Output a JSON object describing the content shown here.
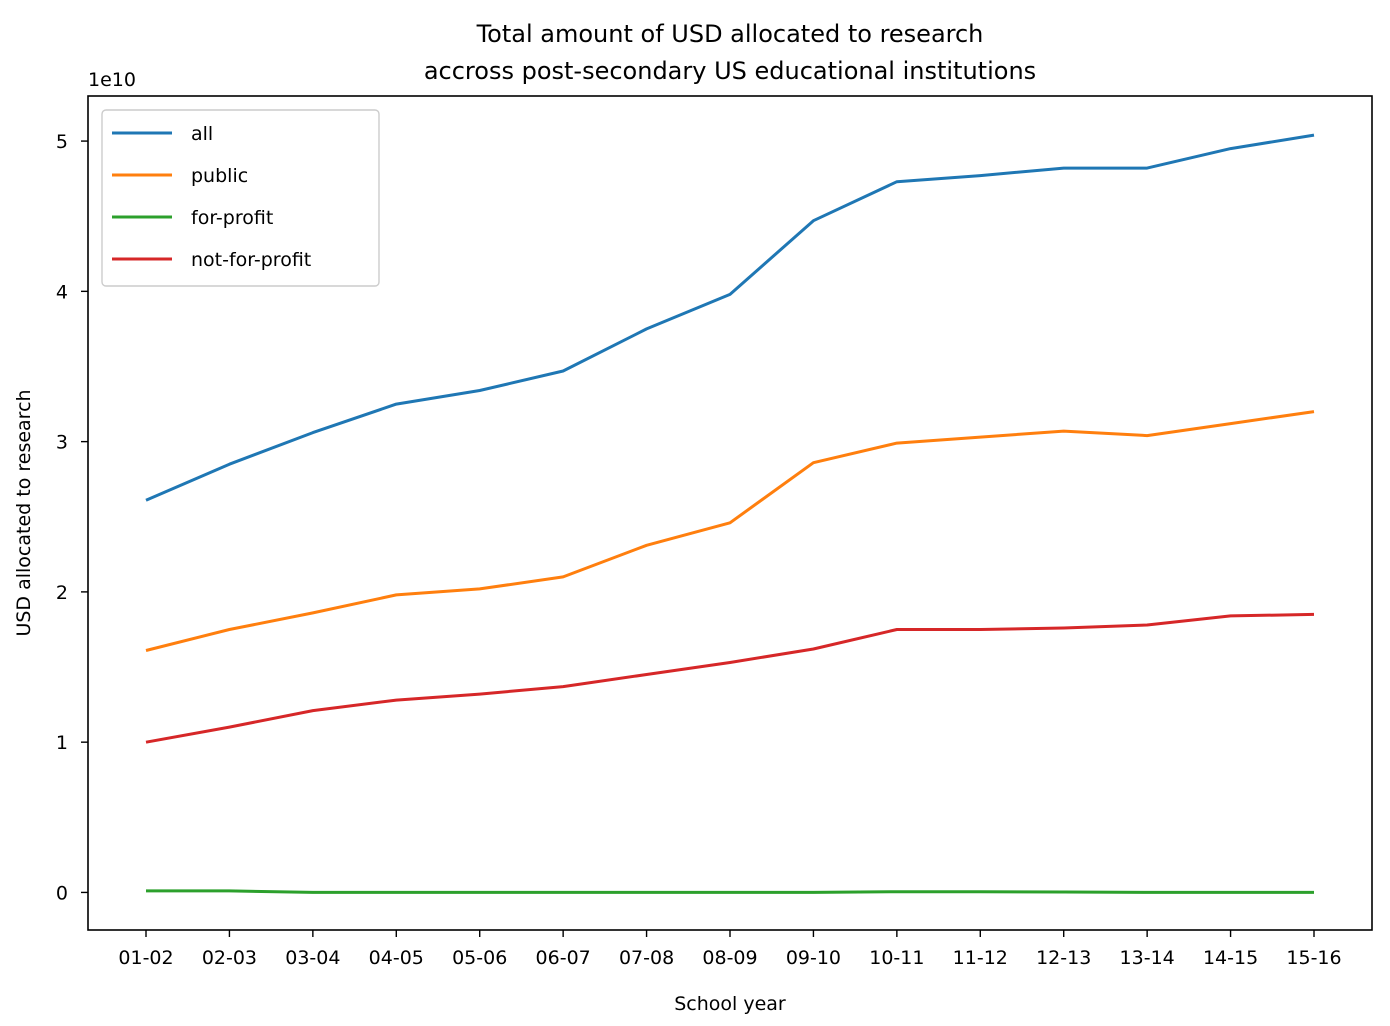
{
  "chart_data": {
    "type": "line",
    "title": [
      "Total amount of USD allocated to research",
      "accross post-secondary US educational institutions"
    ],
    "xlabel": "School year",
    "ylabel": "USD allocated to research",
    "y_offset_label": "1e10",
    "y_scale_factor": 10000000000,
    "categories": [
      "01-02",
      "02-03",
      "03-04",
      "04-05",
      "05-06",
      "06-07",
      "07-08",
      "08-09",
      "09-10",
      "10-11",
      "11-12",
      "12-13",
      "13-14",
      "14-15",
      "15-16"
    ],
    "yticks": [
      0,
      1,
      2,
      3,
      4,
      5
    ],
    "ylim": [
      -0.25,
      5.3
    ],
    "grid": false,
    "legend_position": "upper-left",
    "series": [
      {
        "name": "all",
        "color": "#1f77b4",
        "values": [
          2.61,
          2.85,
          3.06,
          3.25,
          3.34,
          3.47,
          3.75,
          3.98,
          4.47,
          4.73,
          4.77,
          4.82,
          4.82,
          4.95,
          5.04
        ]
      },
      {
        "name": "public",
        "color": "#ff7f0e",
        "values": [
          1.61,
          1.75,
          1.86,
          1.98,
          2.02,
          2.1,
          2.31,
          2.46,
          2.86,
          2.99,
          3.03,
          3.07,
          3.04,
          3.12,
          3.2
        ]
      },
      {
        "name": "for-profit",
        "color": "#2ca02c",
        "values": [
          0.01,
          0.01,
          0.0,
          0.0,
          0.0,
          0.0,
          0.0,
          0.0,
          0.0,
          0.005,
          0.005,
          0.003,
          0.0,
          0.0,
          0.0
        ]
      },
      {
        "name": "not-for-profit",
        "color": "#d62728",
        "values": [
          1.0,
          1.1,
          1.21,
          1.28,
          1.32,
          1.37,
          1.45,
          1.53,
          1.62,
          1.75,
          1.75,
          1.76,
          1.78,
          1.84,
          1.85
        ]
      }
    ]
  }
}
